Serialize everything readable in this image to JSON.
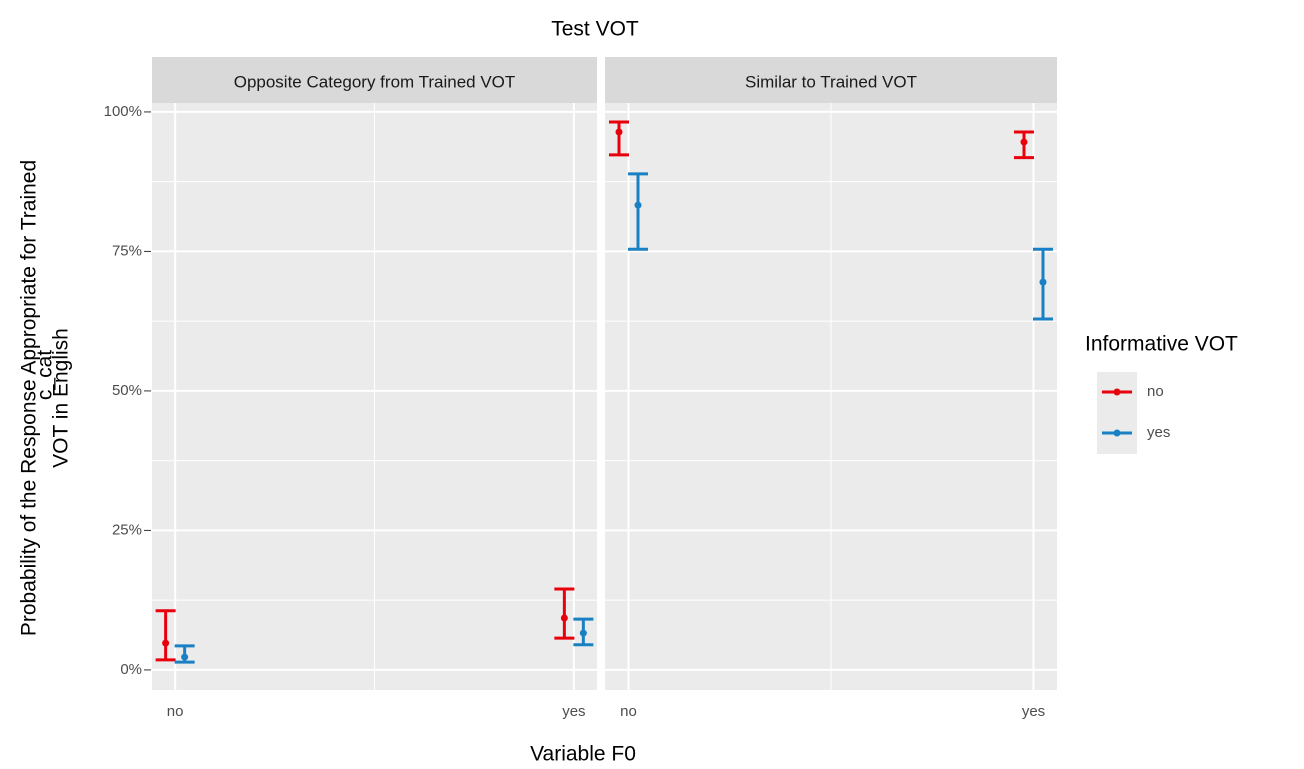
{
  "chart_data": {
    "type": "errorbar",
    "title": "Test VOT",
    "xlabel": "Variable F0",
    "ylabel": [
      "Probability of the Response Appropriate for Trained",
      "VOT in English"
    ],
    "ylabel_overlay": "c_cat",
    "legend_title": "Informative VOT",
    "legend": "right",
    "grid": true,
    "facets": [
      "Opposite Category from Trained VOT",
      "Similar to Trained VOT"
    ],
    "categories": [
      "no",
      "yes"
    ],
    "ylim": [
      -3.6,
      101.6
    ],
    "yticks": [
      {
        "value": 0,
        "label": "0%"
      },
      {
        "value": 25,
        "label": "25%"
      },
      {
        "value": 50,
        "label": "50%"
      },
      {
        "value": 75,
        "label": "75%"
      },
      {
        "value": 100,
        "label": "100%"
      }
    ],
    "series": [
      {
        "name": "no",
        "color": "#e8000b",
        "values": [
          [
            4.8,
            9.3
          ],
          [
            96.4,
            94.6
          ]
        ],
        "lower": [
          [
            1.8,
            5.7
          ],
          [
            92.3,
            91.8
          ]
        ],
        "upper": [
          [
            10.6,
            14.5
          ],
          [
            98.2,
            96.4
          ]
        ]
      },
      {
        "name": "yes",
        "color": "#1a80c4",
        "values": [
          [
            2.3,
            6.6
          ],
          [
            83.3,
            69.5
          ]
        ],
        "lower": [
          [
            1.4,
            4.5
          ],
          [
            75.4,
            62.9
          ]
        ],
        "upper": [
          [
            4.3,
            9.1
          ],
          [
            88.9,
            75.4
          ]
        ]
      }
    ]
  }
}
